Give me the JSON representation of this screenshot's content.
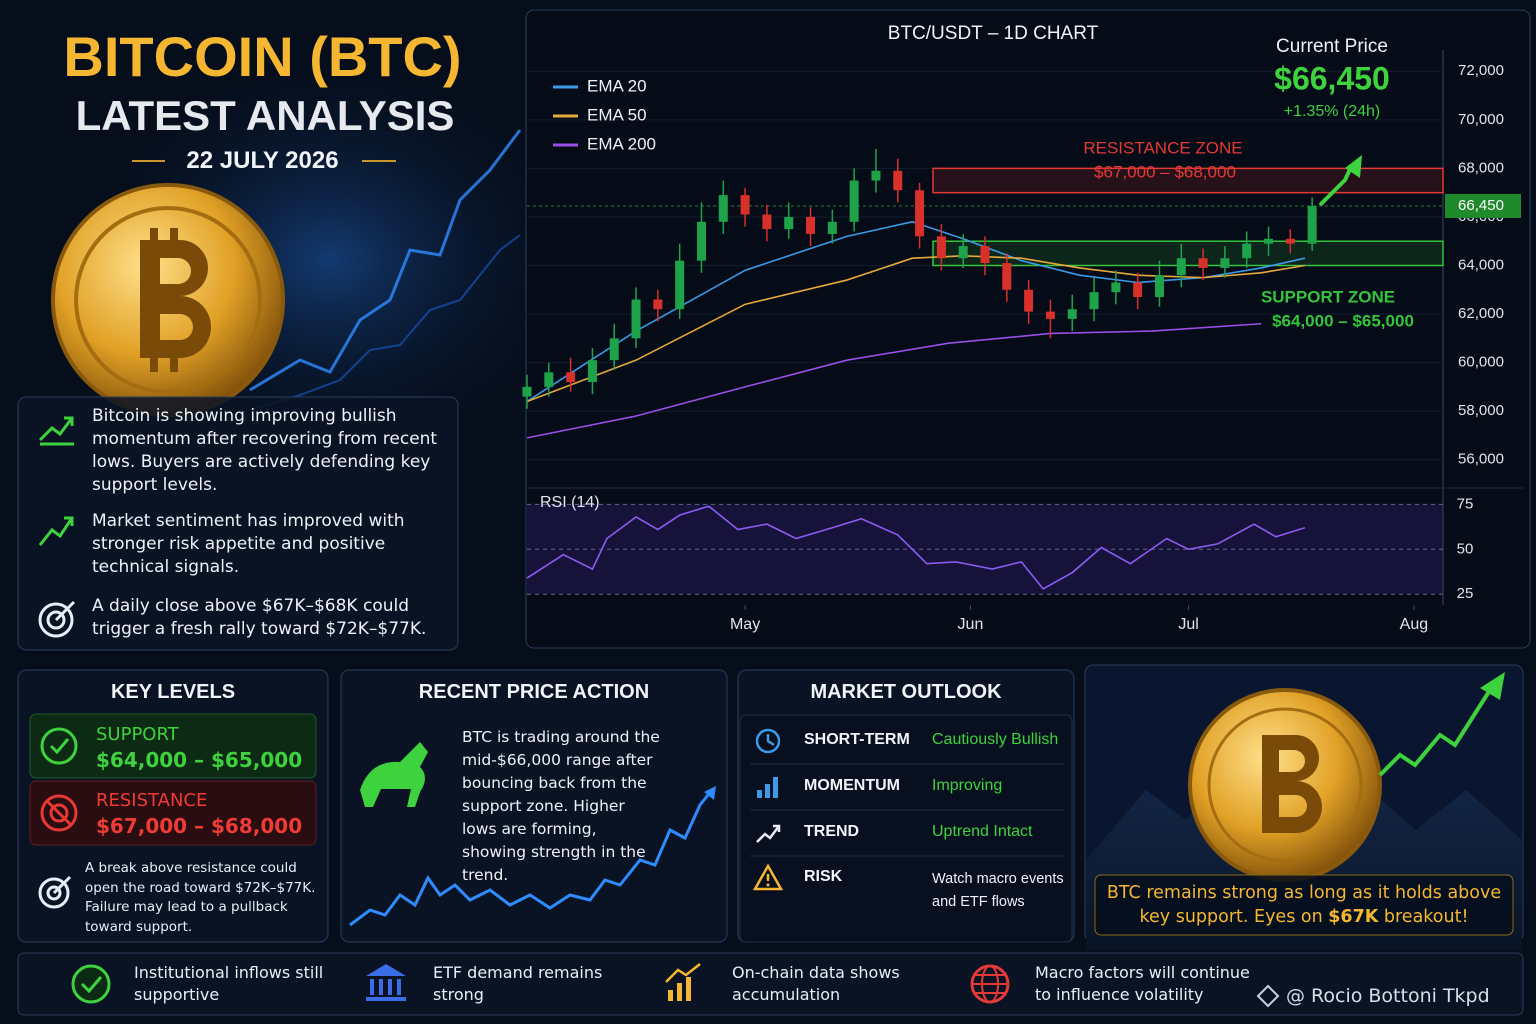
{
  "header": {
    "title": "BITCOIN (BTC)",
    "subtitle": "LATEST ANALYSIS",
    "date": "22 JULY 2026"
  },
  "highlights": [
    "Bitcoin is showing improving bullish momentum after recovering from recent lows. Buyers are actively defending key support levels.",
    "Market sentiment has improved with stronger risk appetite and positive technical signals.",
    "A daily close above $67K–$68K could trigger a fresh rally toward $72K–$77K."
  ],
  "chart_data": [
    {
      "type": "candlestick",
      "title": "BTC/USDT – 1D CHART",
      "x": [
        0,
        3,
        6,
        9,
        12,
        15,
        18,
        21,
        24,
        27,
        30,
        33,
        36,
        39,
        42,
        45,
        48,
        51,
        54,
        57,
        60,
        63,
        66,
        69,
        72,
        75,
        78,
        81,
        84,
        87,
        90,
        93,
        96,
        99,
        102,
        105,
        108
      ],
      "open": [
        58600,
        59000,
        59600,
        59200,
        60100,
        61000,
        62600,
        62200,
        64200,
        65800,
        66900,
        66100,
        65500,
        66000,
        65300,
        65800,
        67500,
        67900,
        67100,
        65200,
        64300,
        64800,
        64100,
        63000,
        62100,
        61800,
        62200,
        62900,
        63300,
        62700,
        63600,
        64300,
        63900,
        64300,
        64900,
        65100,
        64900
      ],
      "high": [
        59500,
        60000,
        60200,
        60600,
        61600,
        63100,
        63000,
        64900,
        66600,
        67500,
        67200,
        66500,
        66600,
        66400,
        66300,
        68000,
        68800,
        68400,
        67400,
        65700,
        65300,
        65200,
        64500,
        63400,
        62600,
        62800,
        63500,
        63800,
        63700,
        64200,
        64900,
        64700,
        64800,
        65400,
        65600,
        65500,
        66800
      ],
      "low": [
        58100,
        58600,
        58800,
        58700,
        59700,
        60600,
        61700,
        61800,
        63700,
        65300,
        65600,
        65000,
        65100,
        64800,
        64900,
        65400,
        67000,
        66600,
        64700,
        63800,
        63900,
        63600,
        62500,
        61600,
        61000,
        61300,
        61700,
        62400,
        62200,
        62300,
        63100,
        63400,
        63500,
        63900,
        64400,
        64500,
        64600
      ],
      "close": [
        59000,
        59600,
        59200,
        60100,
        61000,
        62600,
        62200,
        64200,
        65800,
        66900,
        66100,
        65500,
        66000,
        65300,
        65800,
        67500,
        67900,
        67100,
        65200,
        64300,
        64800,
        64100,
        63000,
        62100,
        61800,
        62200,
        62900,
        63300,
        62700,
        63600,
        64300,
        63900,
        64300,
        64900,
        65100,
        64900,
        66450
      ],
      "up_color": "#1fa34a",
      "down_color": "#d8312b",
      "series": [
        {
          "name": "EMA 20",
          "color": "#3b9be8",
          "x": [
            0,
            15,
            30,
            44,
            53,
            60,
            68,
            76,
            84,
            93,
            101,
            107
          ],
          "values": [
            58400,
            61300,
            63800,
            65200,
            65800,
            65100,
            64200,
            63600,
            63300,
            63500,
            63900,
            64300
          ]
        },
        {
          "name": "EMA 50",
          "color": "#e8a93b",
          "x": [
            0,
            15,
            30,
            44,
            53,
            60,
            68,
            76,
            84,
            93,
            101,
            107
          ],
          "values": [
            58400,
            60100,
            62400,
            63400,
            64300,
            64400,
            64300,
            63900,
            63600,
            63500,
            63700,
            64000
          ]
        },
        {
          "name": "EMA 200",
          "color": "#9b4fe8",
          "x": [
            0,
            15,
            30,
            44,
            58,
            72,
            86,
            101
          ],
          "values": [
            56900,
            57800,
            59000,
            60100,
            60800,
            61200,
            61300,
            61600
          ]
        }
      ],
      "zones": [
        {
          "name": "RESISTANCE ZONE",
          "label": "$67,000 – $68,000",
          "low": 67000,
          "high": 68000,
          "color": "#e53935"
        },
        {
          "name": "SUPPORT ZONE",
          "label": "$64,000 – $65,000",
          "low": 64000,
          "high": 65000,
          "color": "#35c43b"
        }
      ],
      "current_price": {
        "title": "Current Price",
        "value": 66450,
        "label": "$66,450",
        "change": "+1.35% (24h)",
        "tick_label": "66,450"
      },
      "xlim": [
        0,
        126
      ],
      "ylim": [
        55000,
        74400
      ],
      "yticks": [
        {
          "value": 56000,
          "label": "56,000"
        },
        {
          "value": 58000,
          "label": "58,000"
        },
        {
          "value": 60000,
          "label": "60,000"
        },
        {
          "value": 62000,
          "label": "62,000"
        },
        {
          "value": 64000,
          "label": "64,000"
        },
        {
          "value": 66000,
          "label": "66,000"
        },
        {
          "value": 68000,
          "label": "68,000"
        },
        {
          "value": 70000,
          "label": "70,000"
        },
        {
          "value": 72000,
          "label": "72,000"
        }
      ],
      "grid": true
    },
    {
      "type": "line",
      "title": "RSI (14)",
      "x": [
        0,
        5,
        9,
        11,
        15,
        18,
        21,
        25,
        29,
        33,
        37,
        42,
        46,
        51,
        55,
        59,
        64,
        68,
        71,
        75,
        79,
        83,
        88,
        91,
        95,
        100,
        103,
        107
      ],
      "values": [
        34,
        47,
        39,
        56,
        68,
        61,
        69,
        74,
        61,
        64,
        56,
        62,
        67,
        58,
        42,
        43,
        39,
        43,
        28,
        37,
        51,
        42,
        56,
        50,
        53,
        64,
        57,
        62
      ],
      "color": "#8a5cf0",
      "xlim": [
        0,
        126
      ],
      "ylim": [
        19,
        83
      ],
      "yticks": [
        25,
        50,
        75
      ],
      "xticks": [
        {
          "value": 30,
          "label": "May"
        },
        {
          "value": 61,
          "label": "Jun"
        },
        {
          "value": 91,
          "label": "Jul"
        },
        {
          "value": 122,
          "label": "Aug"
        }
      ]
    }
  ],
  "key_levels": {
    "title": "KEY LEVELS",
    "support": {
      "label": "SUPPORT",
      "range": "$64,000 – $65,000"
    },
    "resistance": {
      "label": "RESISTANCE",
      "range": "$67,000 – $68,000"
    },
    "note": "A break above resistance could open the road toward $72K–$77K. Failure may lead to a pullback toward support."
  },
  "price_action": {
    "title": "RECENT PRICE ACTION",
    "text": "BTC is trading around the mid-$66,000 range after bouncing back from the support zone. Higher lows are forming, showing strength in the trend."
  },
  "outlook": {
    "title": "MARKET OUTLOOK",
    "rows": [
      {
        "label": "SHORT-TERM",
        "value": "Cautiously Bullish"
      },
      {
        "label": "MOMENTUM",
        "value": "Improving"
      },
      {
        "label": "TREND",
        "value": "Uptrend Intact"
      },
      {
        "label": "RISK",
        "value": "Watch macro events and ETF flows"
      }
    ]
  },
  "callout": [
    "BTC remains strong as long as it holds above key support. Eyes on ",
    "$67K",
    " breakout!"
  ],
  "footer": {
    "items": [
      "Institutional inflows still supportive",
      "ETF demand remains strong",
      "On-chain data shows accumulation",
      "Macro factors will continue to influence volatility"
    ],
    "watermark": "@ Rocio Bottoni Tkpd"
  }
}
